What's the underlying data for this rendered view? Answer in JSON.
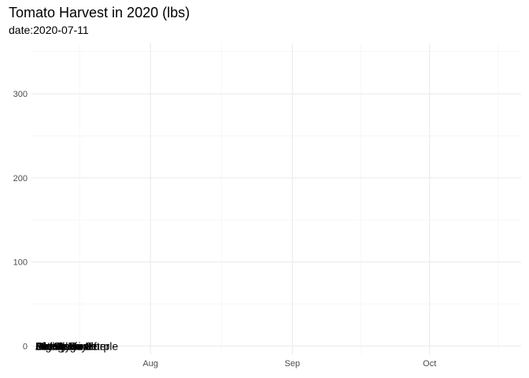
{
  "chart_data": {
    "type": "line",
    "title": "Tomato Harvest in 2020 (lbs)",
    "subtitle": "date:2020-07-11",
    "xlabel": "",
    "ylabel": "",
    "x_axis": {
      "type": "date",
      "range": [
        "2020-07-06",
        "2020-10-21"
      ],
      "ticks": [
        "2020-08-01",
        "2020-09-01",
        "2020-10-01"
      ],
      "tick_labels": [
        "Aug",
        "Sep",
        "Oct"
      ]
    },
    "y_axis": {
      "range": [
        -10,
        360
      ],
      "ticks": [
        0,
        100,
        200,
        300
      ],
      "tick_labels": [
        "0",
        "100",
        "200",
        "300"
      ]
    },
    "grid": true,
    "legend": "none",
    "series": [
      {
        "name": "Amish Paste",
        "x": [
          "2020-07-11"
        ],
        "values": [
          0
        ]
      },
      {
        "name": "Better Boy",
        "x": [
          "2020-07-11"
        ],
        "values": [
          0
        ]
      },
      {
        "name": "Big Beef",
        "x": [
          "2020-07-11"
        ],
        "values": [
          0
        ]
      },
      {
        "name": "Bonny Best",
        "x": [
          "2020-07-11"
        ],
        "values": [
          0
        ]
      },
      {
        "name": "Brandywine",
        "x": [
          "2020-07-11"
        ],
        "values": [
          0
        ]
      },
      {
        "name": "Cherokee Purple",
        "x": [
          "2020-07-11"
        ],
        "values": [
          0
        ]
      },
      {
        "name": "Jet Star",
        "x": [
          "2020-07-11"
        ],
        "values": [
          0
        ]
      },
      {
        "name": "Mortgage Lifter",
        "x": [
          "2020-07-11"
        ],
        "values": [
          0
        ]
      },
      {
        "name": "Old German",
        "x": [
          "2020-07-11"
        ],
        "values": [
          0
        ]
      }
    ]
  }
}
